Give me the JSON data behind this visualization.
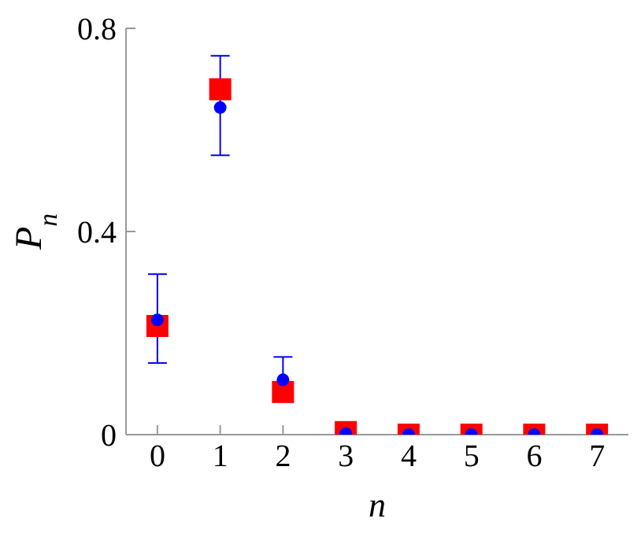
{
  "chart_data": {
    "type": "scatter",
    "xlabel": "n",
    "ylabel": "P$_{n}$",
    "x": [
      0,
      1,
      2,
      3,
      4,
      5,
      6,
      7
    ],
    "xlim": [
      -0.5,
      7.5
    ],
    "xticks": [
      0,
      1,
      2,
      3,
      4,
      5,
      6,
      7
    ],
    "ylim": [
      0,
      0.8
    ],
    "yticks": [
      0,
      0.4,
      0.8
    ],
    "grid": false,
    "legend": false,
    "series": [
      {
        "color": "#ff0000",
        "marker": "square",
        "values": [
          0.214,
          0.68,
          0.084,
          0.005,
          0,
          0,
          0,
          0
        ]
      },
      {
        "color": "#0000ff",
        "marker": "circle",
        "values": [
          0.226,
          0.644,
          0.108,
          0.002,
          0,
          0,
          0,
          0
        ],
        "errors": [
          [
            0.141,
            0.316
          ],
          [
            0.55,
            0.746
          ],
          [
            0.066,
            0.153
          ],
          null,
          null,
          null,
          null,
          null
        ]
      }
    ]
  }
}
